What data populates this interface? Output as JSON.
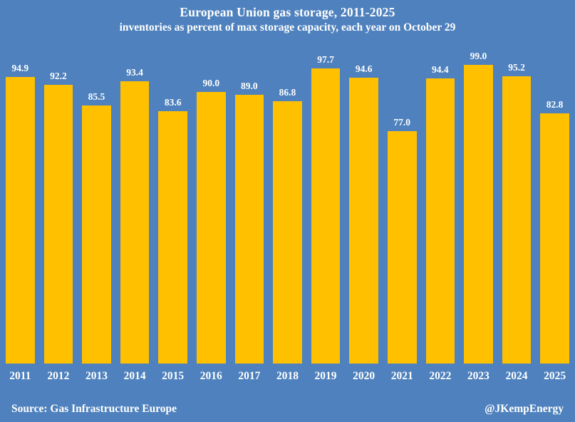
{
  "chart_data": {
    "type": "bar",
    "title": "European Union gas storage, 2011-2025",
    "subtitle": "inventories as percent of max storage capacity, each year on October 29",
    "categories": [
      "2011",
      "2012",
      "2013",
      "2014",
      "2015",
      "2016",
      "2017",
      "2018",
      "2019",
      "2020",
      "2021",
      "2022",
      "2023",
      "2024",
      "2025"
    ],
    "values": [
      94.9,
      92.2,
      85.5,
      93.4,
      83.6,
      90.0,
      89.0,
      86.8,
      97.7,
      94.6,
      77.0,
      94.4,
      99.0,
      95.2,
      82.8
    ],
    "value_label_format": "one-decimal",
    "xlabel": "",
    "ylabel": "",
    "ylim": [
      0,
      105
    ],
    "grid": false,
    "legend": "none",
    "bar_color": "#FFC000",
    "background_color": "#4E81BD",
    "text_color": "#FFFFFF"
  },
  "footer": {
    "source": "Source: Gas Infrastructure Europe",
    "handle": "@JKempEnergy"
  }
}
